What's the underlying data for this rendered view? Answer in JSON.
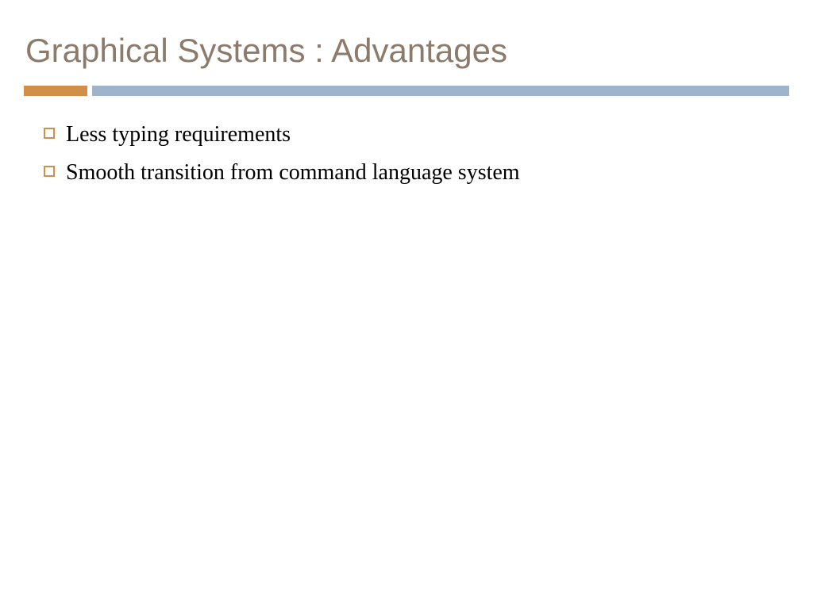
{
  "slide": {
    "title": "Graphical Systems : Advantages",
    "title_color": "#8c7b6b",
    "title_fontsize": 42,
    "divider": {
      "accent_color": "#d18f47",
      "accent_width": 80,
      "main_color": "#9db4cc",
      "height": 13
    },
    "bullets": [
      {
        "text": "Less typing requirements"
      },
      {
        "text": "Smooth transition from command language system"
      }
    ],
    "bullet_marker_color": "#d18f47",
    "bullet_text_color": "#000000",
    "bullet_fontsize": 28,
    "background_color": "#ffffff"
  }
}
